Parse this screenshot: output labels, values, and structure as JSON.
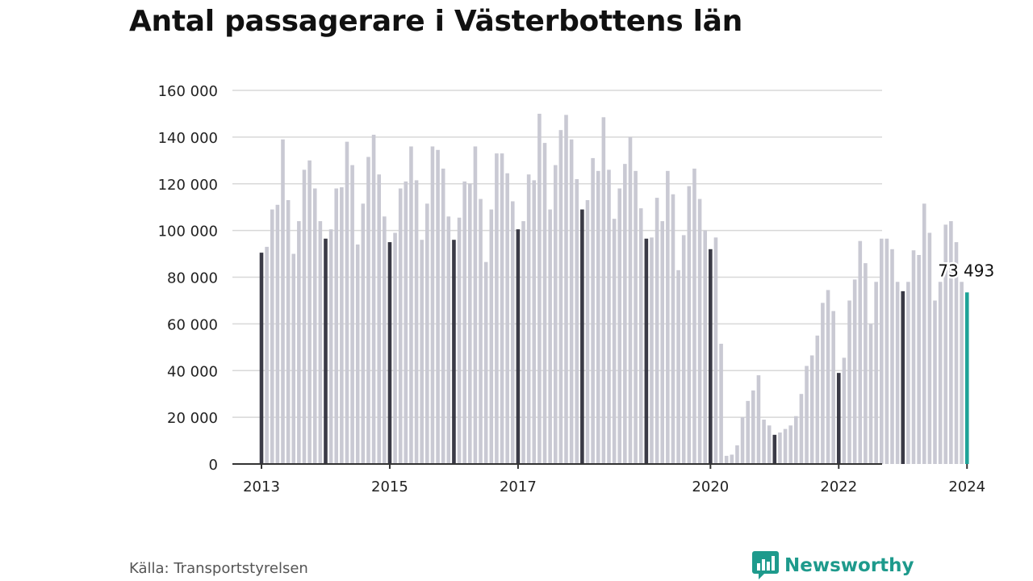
{
  "title": "Antal passagerare i Västerbottens län",
  "source": "Källa: Transportstyrelsen",
  "brand": {
    "name": "Newsworthy",
    "icon": "newsworthy-logo-icon"
  },
  "colors": {
    "bar": "#c9c9d3",
    "january": "#3a3a46",
    "latest": "#1ea398",
    "grid": "#d8d8d8",
    "axis": "#333333"
  },
  "chart_data": {
    "type": "bar",
    "title": "Antal passagerare i Västerbottens län",
    "xlabel": "",
    "ylabel": "",
    "ylim": [
      0,
      160000
    ],
    "yticks": [
      0,
      20000,
      40000,
      60000,
      80000,
      100000,
      120000,
      140000,
      160000
    ],
    "ytick_labels": [
      "0",
      "20 000",
      "40 000",
      "60 000",
      "80 000",
      "100 000",
      "120 000",
      "140 000",
      "160 000"
    ],
    "xtick_labels": [
      {
        "label": "2013",
        "category": "2013-01"
      },
      {
        "label": "2015",
        "category": "2015-01"
      },
      {
        "label": "2017",
        "category": "2017-01"
      },
      {
        "label": "2020",
        "category": "2020-01"
      },
      {
        "label": "2022",
        "category": "2022-01"
      },
      {
        "label": "2024",
        "category": "2024-01"
      }
    ],
    "grid": true,
    "highlight": "January bars dark, latest month teal",
    "annotation": {
      "category": "2024-01",
      "text": "73 493"
    },
    "categories": [
      "2013-01",
      "2013-02",
      "2013-03",
      "2013-04",
      "2013-05",
      "2013-06",
      "2013-07",
      "2013-08",
      "2013-09",
      "2013-10",
      "2013-11",
      "2013-12",
      "2014-01",
      "2014-02",
      "2014-03",
      "2014-04",
      "2014-05",
      "2014-06",
      "2014-07",
      "2014-08",
      "2014-09",
      "2014-10",
      "2014-11",
      "2014-12",
      "2015-01",
      "2015-02",
      "2015-03",
      "2015-04",
      "2015-05",
      "2015-06",
      "2015-07",
      "2015-08",
      "2015-09",
      "2015-10",
      "2015-11",
      "2015-12",
      "2016-01",
      "2016-02",
      "2016-03",
      "2016-04",
      "2016-05",
      "2016-06",
      "2016-07",
      "2016-08",
      "2016-09",
      "2016-10",
      "2016-11",
      "2016-12",
      "2017-01",
      "2017-02",
      "2017-03",
      "2017-04",
      "2017-05",
      "2017-06",
      "2017-07",
      "2017-08",
      "2017-09",
      "2017-10",
      "2017-11",
      "2017-12",
      "2018-01",
      "2018-02",
      "2018-03",
      "2018-04",
      "2018-05",
      "2018-06",
      "2018-07",
      "2018-08",
      "2018-09",
      "2018-10",
      "2018-11",
      "2018-12",
      "2019-01",
      "2019-02",
      "2019-03",
      "2019-04",
      "2019-05",
      "2019-06",
      "2019-07",
      "2019-08",
      "2019-09",
      "2019-10",
      "2019-11",
      "2019-12",
      "2020-01",
      "2020-02",
      "2020-03",
      "2020-04",
      "2020-05",
      "2020-06",
      "2020-07",
      "2020-08",
      "2020-09",
      "2020-10",
      "2020-11",
      "2020-12",
      "2021-01",
      "2021-02",
      "2021-03",
      "2021-04",
      "2021-05",
      "2021-06",
      "2021-07",
      "2021-08",
      "2021-09",
      "2021-10",
      "2021-11",
      "2021-12",
      "2022-01",
      "2022-02",
      "2022-03",
      "2022-04",
      "2022-05",
      "2022-06",
      "2022-07",
      "2022-08",
      "2022-09",
      "2022-10",
      "2022-11",
      "2022-12",
      "2023-01",
      "2023-02",
      "2023-03",
      "2023-04",
      "2023-05",
      "2023-06",
      "2023-07",
      "2023-08",
      "2023-09",
      "2023-10",
      "2023-11",
      "2023-12",
      "2024-01"
    ],
    "values": [
      90500,
      93000,
      109000,
      111000,
      139000,
      113000,
      90000,
      104000,
      126000,
      130000,
      118000,
      104000,
      96500,
      100500,
      118000,
      118500,
      138000,
      128000,
      94000,
      111500,
      131500,
      141000,
      124000,
      106000,
      95000,
      99000,
      118000,
      121000,
      136000,
      121500,
      96000,
      111500,
      136000,
      134500,
      126500,
      106000,
      96000,
      105500,
      121000,
      120000,
      136000,
      113500,
      86500,
      109000,
      133000,
      133000,
      124500,
      112500,
      100500,
      104000,
      124000,
      121500,
      150000,
      137500,
      109000,
      128000,
      143000,
      149500,
      139000,
      122000,
      109000,
      113000,
      131000,
      125500,
      148500,
      126000,
      105000,
      118000,
      128500,
      140000,
      125500,
      109500,
      96500,
      97000,
      114000,
      104000,
      125500,
      115500,
      83000,
      98000,
      119000,
      126500,
      113500,
      100000,
      92000,
      97000,
      51500,
      3500,
      4000,
      8000,
      20000,
      27000,
      31500,
      38000,
      19000,
      16500,
      12500,
      13500,
      15000,
      16500,
      20500,
      30000,
      42000,
      46500,
      55000,
      69000,
      74500,
      65500,
      39000,
      45500,
      70000,
      79000,
      95500,
      86000,
      60000,
      78000,
      96500,
      96500,
      92000,
      78000,
      74000,
      78000,
      91500,
      89500,
      111500,
      99000,
      70000,
      78000,
      102500,
      104000,
      95000,
      78000,
      73493
    ]
  }
}
